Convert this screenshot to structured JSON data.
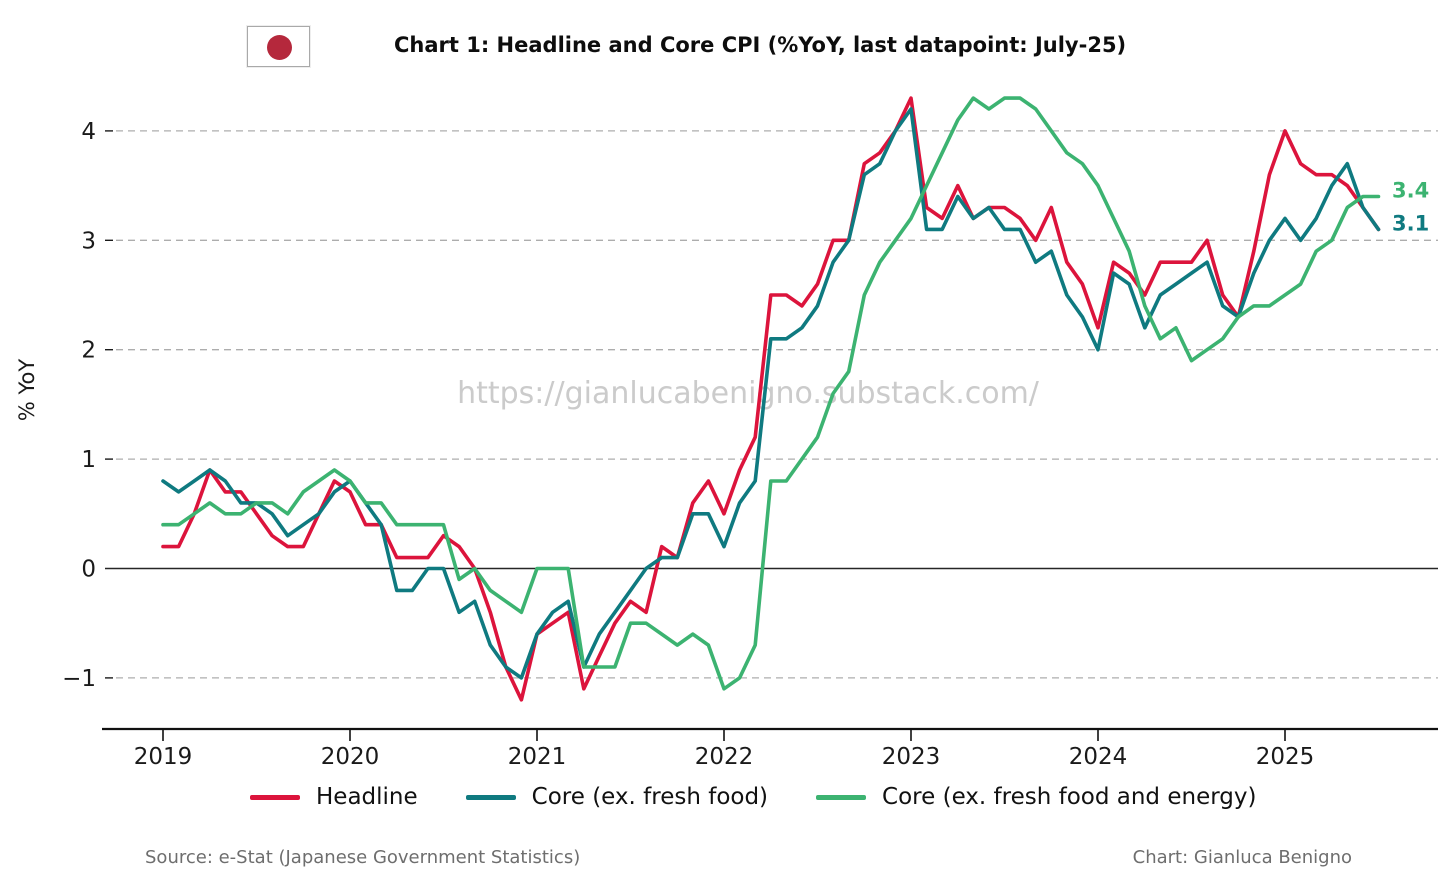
{
  "header": {
    "flag_icon": "japan-flag",
    "title": "Chart 1: Headline and Core CPI (%YoY, last datapoint: July-25)"
  },
  "watermark": "https://gianlucabenigno.substack.com/",
  "legend": {
    "items": [
      {
        "label": "Headline",
        "color": "#dc143c"
      },
      {
        "label": "Core (ex. fresh food)",
        "color": "#0f7a80"
      },
      {
        "label": "Core (ex. fresh food and energy)",
        "color": "#3cb371"
      }
    ]
  },
  "footer": {
    "source": "Source: e-Stat (Japanese Government Statistics)",
    "credit": "Chart: Gianluca Benigno"
  },
  "chart_data": {
    "type": "line",
    "title": "Chart 1: Headline and Core CPI (%YoY, last datapoint: July-25)",
    "ylabel": "% YoY",
    "x_start": "2019-01",
    "x_end": "2025-07",
    "frequency": "monthly",
    "x_tick_labels": [
      "2019",
      "2020",
      "2021",
      "2022",
      "2023",
      "2024",
      "2025"
    ],
    "y_ticks": [
      4,
      3,
      2,
      1,
      0,
      -1
    ],
    "y_tick_labels": [
      "4",
      "3",
      "2",
      "1",
      "0",
      "−1"
    ],
    "ylim": [
      -1.45,
      4.45
    ],
    "grid": "horizontal-dashed",
    "zero_line": true,
    "legend_position": "bottom",
    "flag_red": "#b5283c",
    "grid_color": "#adadad",
    "series": [
      {
        "name": "Headline",
        "color": "#dc143c",
        "end_label": null,
        "values": [
          0.2,
          0.2,
          0.5,
          0.9,
          0.7,
          0.7,
          0.5,
          0.3,
          0.2,
          0.2,
          0.5,
          0.8,
          0.7,
          0.4,
          0.4,
          0.1,
          0.1,
          0.1,
          0.3,
          0.2,
          0.0,
          -0.4,
          -0.9,
          -1.2,
          -0.6,
          -0.5,
          -0.4,
          -1.1,
          -0.8,
          -0.5,
          -0.3,
          -0.4,
          0.2,
          0.1,
          0.6,
          0.8,
          0.5,
          0.9,
          1.2,
          2.5,
          2.5,
          2.4,
          2.6,
          3.0,
          3.0,
          3.7,
          3.8,
          4.0,
          4.3,
          3.3,
          3.2,
          3.5,
          3.2,
          3.3,
          3.3,
          3.2,
          3.0,
          3.3,
          2.8,
          2.6,
          2.2,
          2.8,
          2.7,
          2.5,
          2.8,
          2.8,
          2.8,
          3.0,
          2.5,
          2.3,
          2.9,
          3.6,
          4.0,
          3.7,
          3.6,
          3.6,
          3.5,
          3.3,
          3.1
        ]
      },
      {
        "name": "Core (ex. fresh food)",
        "color": "#0f7a80",
        "end_label": "3.1",
        "values": [
          0.8,
          0.7,
          0.8,
          0.9,
          0.8,
          0.6,
          0.6,
          0.5,
          0.3,
          0.4,
          0.5,
          0.7,
          0.8,
          0.6,
          0.4,
          -0.2,
          -0.2,
          0.0,
          0.0,
          -0.4,
          -0.3,
          -0.7,
          -0.9,
          -1.0,
          -0.6,
          -0.4,
          -0.3,
          -0.9,
          -0.6,
          -0.4,
          -0.2,
          0.0,
          0.1,
          0.1,
          0.5,
          0.5,
          0.2,
          0.6,
          0.8,
          2.1,
          2.1,
          2.2,
          2.4,
          2.8,
          3.0,
          3.6,
          3.7,
          4.0,
          4.2,
          3.1,
          3.1,
          3.4,
          3.2,
          3.3,
          3.1,
          3.1,
          2.8,
          2.9,
          2.5,
          2.3,
          2.0,
          2.7,
          2.6,
          2.2,
          2.5,
          2.6,
          2.7,
          2.8,
          2.4,
          2.3,
          2.7,
          3.0,
          3.2,
          3.0,
          3.2,
          3.5,
          3.7,
          3.3,
          3.1
        ]
      },
      {
        "name": "Core (ex. fresh food and energy)",
        "color": "#3cb371",
        "end_label": "3.4",
        "values": [
          0.4,
          0.4,
          0.5,
          0.6,
          0.5,
          0.5,
          0.6,
          0.6,
          0.5,
          0.7,
          0.8,
          0.9,
          0.8,
          0.6,
          0.6,
          0.4,
          0.4,
          0.4,
          0.4,
          -0.1,
          0.0,
          -0.2,
          -0.3,
          -0.4,
          0.0,
          0.0,
          0.0,
          -0.9,
          -0.9,
          -0.9,
          -0.5,
          -0.5,
          -0.6,
          -0.7,
          -0.6,
          -0.7,
          -1.1,
          -1.0,
          -0.7,
          0.8,
          0.8,
          1.0,
          1.2,
          1.6,
          1.8,
          2.5,
          2.8,
          3.0,
          3.2,
          3.5,
          3.8,
          4.1,
          4.3,
          4.2,
          4.3,
          4.3,
          4.2,
          4.0,
          3.8,
          3.7,
          3.5,
          3.2,
          2.9,
          2.4,
          2.1,
          2.2,
          1.9,
          2.0,
          2.1,
          2.3,
          2.4,
          2.4,
          2.5,
          2.6,
          2.9,
          3.0,
          3.3,
          3.4,
          3.4
        ]
      }
    ]
  }
}
